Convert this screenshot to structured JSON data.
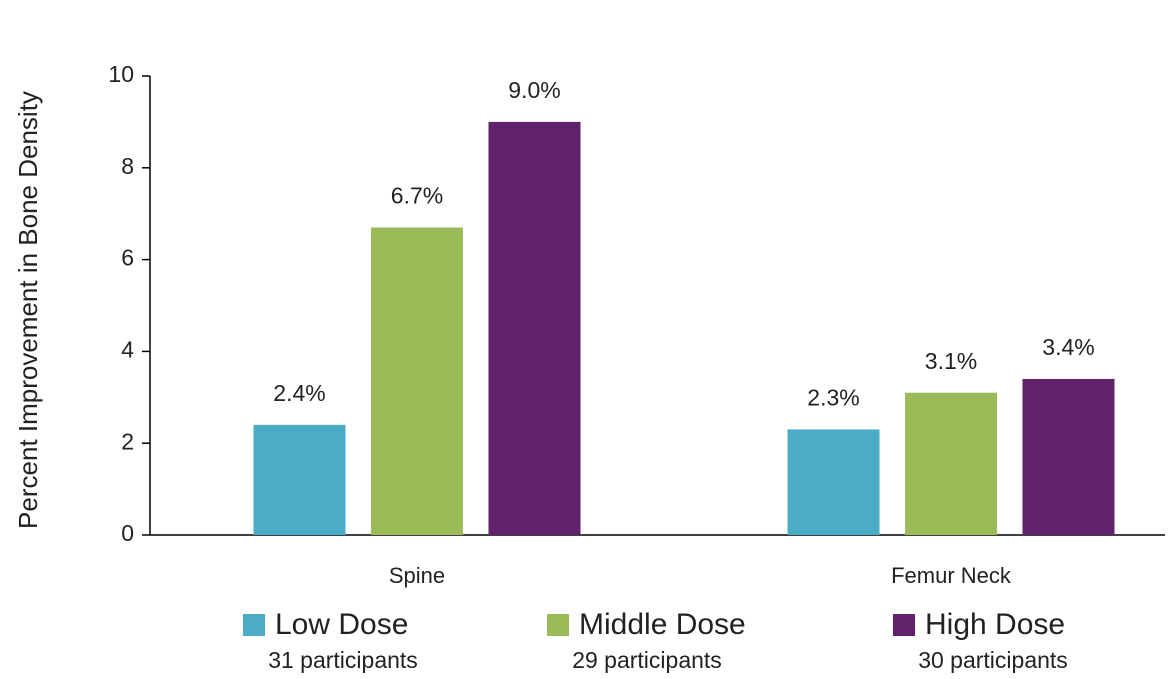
{
  "chart_data": {
    "type": "bar",
    "y_label": "Percent Improvement in Bone Density",
    "categories": [
      "Spine",
      "Femur Neck"
    ],
    "series": [
      {
        "name": "Low Dose",
        "note": "31 participants",
        "color": "#4bacc6",
        "values": [
          2.4,
          2.3
        ],
        "value_labels": [
          "2.4%",
          "2.3%"
        ]
      },
      {
        "name": "Middle Dose",
        "note": "29 participants",
        "color": "#9bbb59",
        "values": [
          6.7,
          3.1
        ],
        "value_labels": [
          "6.7%",
          "3.1%"
        ]
      },
      {
        "name": "High Dose",
        "note": "30 participants",
        "color": "#5f226b",
        "values": [
          9.0,
          3.4
        ],
        "value_labels": [
          "9.0%",
          "3.4%"
        ]
      }
    ],
    "ylim": [
      0,
      10
    ],
    "yticks": [
      0,
      2,
      4,
      6,
      8,
      10
    ],
    "grid": false,
    "legend": "bottom"
  }
}
